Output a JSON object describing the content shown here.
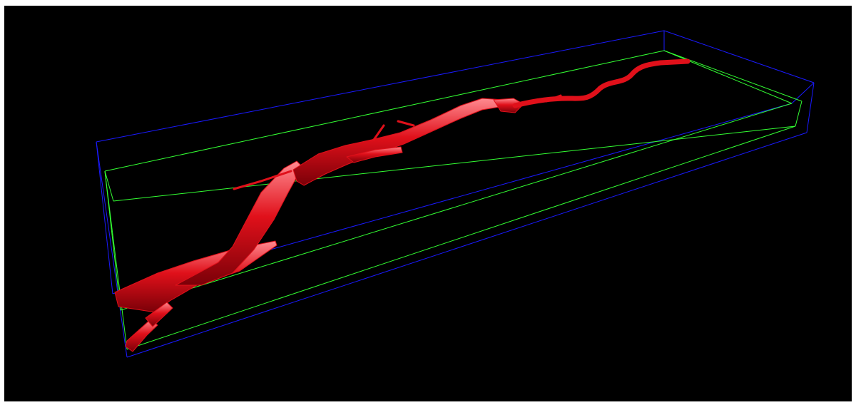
{
  "viewport": {
    "background": "#000000",
    "page_background": "#ffffff"
  },
  "scene": {
    "outer_box_color": "#1a1aff",
    "inner_box_color": "#33ff33",
    "vessel_color": "#e0101a",
    "vessel_highlight_color": "#ff8a90",
    "vessel_shadow_color": "#7a0008"
  }
}
